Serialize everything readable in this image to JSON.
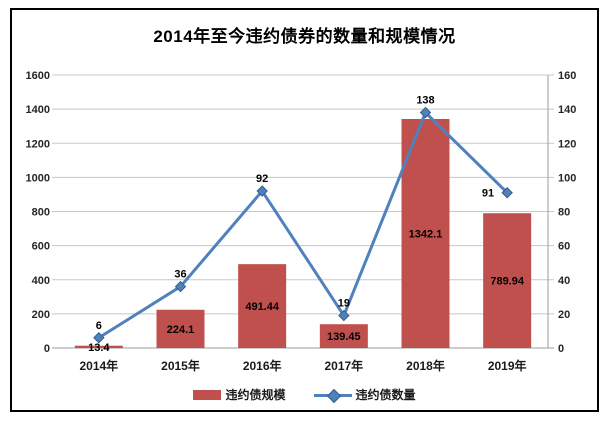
{
  "title": "2014年至今违约债券的数量和规模情况",
  "chart_data": {
    "type": "combo",
    "title": "2014年至今违约债券的数量和规模情况",
    "categories": [
      "2014年",
      "2015年",
      "2016年",
      "2017年",
      "2018年",
      "2019年"
    ],
    "series": [
      {
        "name": "违约债规模",
        "type": "bar",
        "axis": "left",
        "color": "#C0504D",
        "values": [
          13.4,
          224.1,
          491.44,
          139.45,
          1342.1,
          789.94
        ]
      },
      {
        "name": "违约债数量",
        "type": "line",
        "axis": "right",
        "color": "#4F81BD",
        "marker": "diamond",
        "marker_edge": "#385D8A",
        "values": [
          6,
          36,
          92,
          19,
          138,
          91
        ]
      }
    ],
    "left_axis": {
      "min": 0,
      "max": 1600,
      "step": 200,
      "ticks": [
        "0",
        "200",
        "400",
        "600",
        "800",
        "1000",
        "1200",
        "1400",
        "1600"
      ]
    },
    "right_axis": {
      "min": 0,
      "max": 160,
      "step": 20,
      "ticks": [
        "0",
        "20",
        "40",
        "60",
        "80",
        "100",
        "120",
        "140",
        "160"
      ]
    },
    "grid": true,
    "legend_position": "bottom",
    "colors": {
      "gridline": "#C8C8C8",
      "axis_line": "#9B9B9B",
      "background": "#FFFFFF"
    }
  }
}
